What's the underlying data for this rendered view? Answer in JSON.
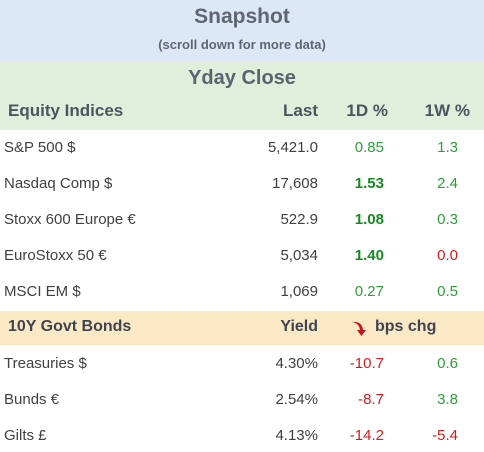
{
  "header": {
    "title": "Snapshot",
    "subtitle": "(scroll down for more data)"
  },
  "section_title": "Yday Close",
  "equity": {
    "label": "Equity Indices",
    "col_last": "Last",
    "col_1d": "1D %",
    "col_1w": "1W %",
    "rows": [
      {
        "name": "S&P 500 $",
        "last": "5,421.0",
        "d1": "0.85",
        "w1": "1.3"
      },
      {
        "name": "Nasdaq Comp $",
        "last": "17,608",
        "d1": "1.53",
        "w1": "2.4"
      },
      {
        "name": "Stoxx 600 Europe  €",
        "last": "522.9",
        "d1": "1.08",
        "w1": "0.3"
      },
      {
        "name": "EuroStoxx 50  €",
        "last": "5,034",
        "d1": "1.40",
        "w1": "0.0"
      },
      {
        "name": "MSCI EM $",
        "last": "1,069",
        "d1": "0.27",
        "w1": "0.5"
      }
    ]
  },
  "bonds": {
    "label": "10Y Govt Bonds",
    "col_yield": "Yield",
    "col_change": "bps chg",
    "rows": [
      {
        "name": "Treasuries  $",
        "yield": "4.30%",
        "d1": "-10.7",
        "w1": "0.6"
      },
      {
        "name": "Bunds  €",
        "yield": "2.54%",
        "d1": "-8.7",
        "w1": "3.8"
      },
      {
        "name": "Gilts  £",
        "yield": "4.13%",
        "d1": "-14.2",
        "w1": "-5.4"
      }
    ]
  },
  "colors": {
    "title_band": "#dce8f5",
    "equity_band": "#e1eedb",
    "bond_band": "#fbe9c6",
    "positive": "#2e9e3a",
    "negative": "#d81b1b",
    "arrow": "#c0171c"
  },
  "icons": {
    "bond_header": "down-arrow-icon"
  }
}
